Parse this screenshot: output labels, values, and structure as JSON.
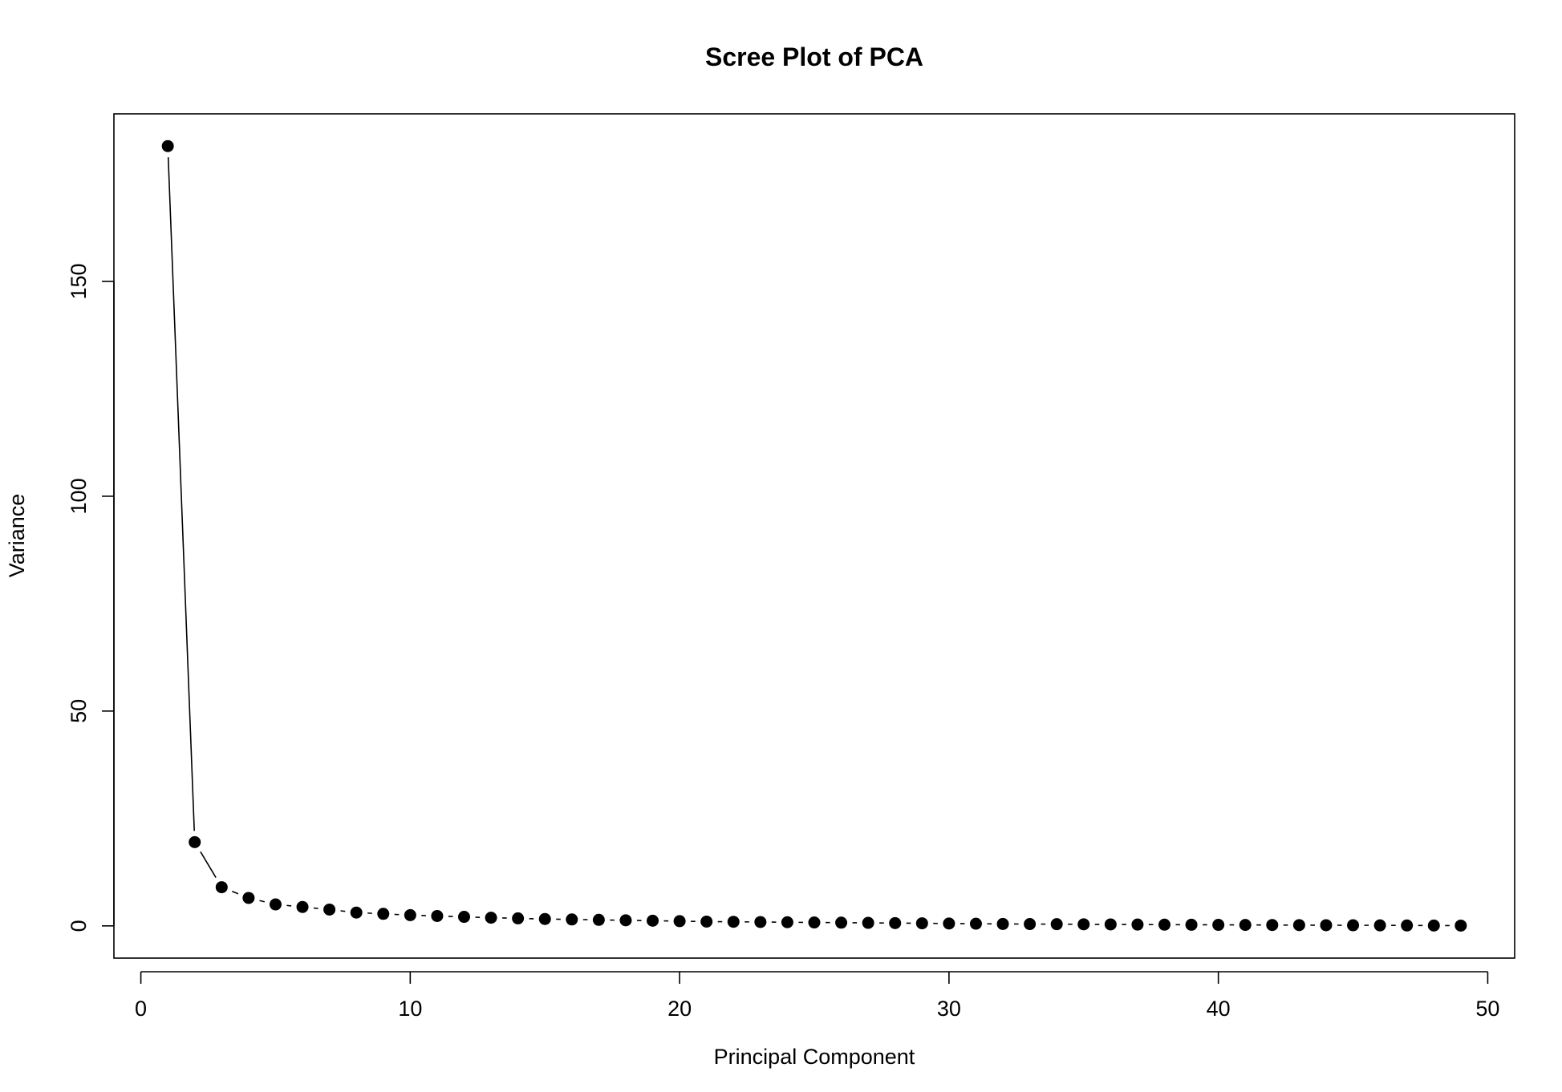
{
  "chart_data": {
    "type": "line",
    "title": "Scree Plot of PCA",
    "xlabel": "Principal Component",
    "ylabel": "Variance",
    "xlim": [
      -1,
      51
    ],
    "ylim": [
      -7.5,
      189
    ],
    "xticks": [
      0,
      10,
      20,
      30,
      40,
      50
    ],
    "yticks": [
      0,
      50,
      100,
      150
    ],
    "grid": false,
    "legend": "none",
    "markers": "filled-circle",
    "series": [
      {
        "x": [
          1,
          2,
          3,
          4,
          5,
          6,
          7,
          8,
          9,
          10,
          11,
          12,
          13,
          14,
          15,
          16,
          17,
          18,
          19,
          20,
          21,
          22,
          23,
          24,
          25,
          26,
          27,
          28,
          29,
          30,
          31,
          32,
          33,
          34,
          35,
          36,
          37,
          38,
          39,
          40,
          41,
          42,
          43,
          44,
          45,
          46,
          47,
          48,
          49
        ],
        "values": [
          181.5,
          19.5,
          9.0,
          6.5,
          5.0,
          4.4,
          3.8,
          3.1,
          2.8,
          2.5,
          2.3,
          2.1,
          1.9,
          1.75,
          1.6,
          1.5,
          1.4,
          1.3,
          1.2,
          1.1,
          1.0,
          0.95,
          0.9,
          0.85,
          0.8,
          0.75,
          0.7,
          0.65,
          0.6,
          0.55,
          0.5,
          0.45,
          0.42,
          0.4,
          0.37,
          0.34,
          0.31,
          0.28,
          0.26,
          0.24,
          0.22,
          0.2,
          0.18,
          0.16,
          0.14,
          0.12,
          0.1,
          0.08,
          0.06
        ]
      }
    ]
  }
}
